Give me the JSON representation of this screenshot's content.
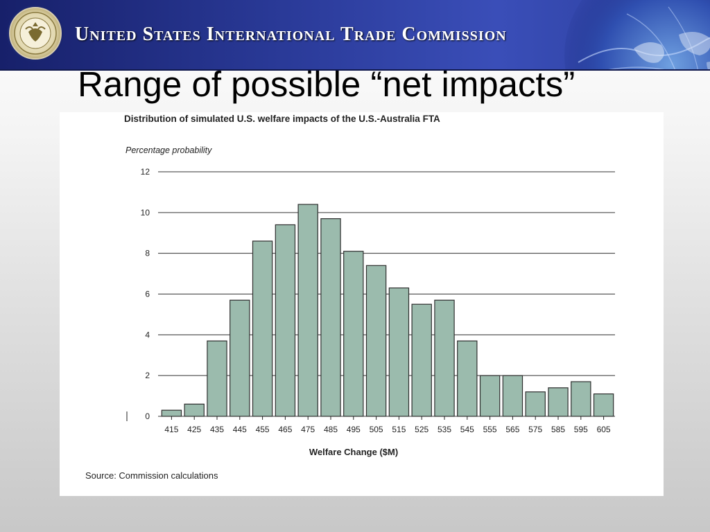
{
  "header": {
    "organization": "United States International Trade Commission",
    "seal_icon": "usitc-seal-icon",
    "globe_graphic": "globe-graphic"
  },
  "slide": {
    "title": "Range of possible “net impacts”"
  },
  "colors": {
    "header_bg": "#2a3a98",
    "bar_fill": "#9bbbad",
    "bar_stroke": "#2e2e2e",
    "grid": "#333333"
  },
  "chart_data": {
    "type": "bar",
    "title": "Distribution of simulated U.S. welfare impacts of the U.S.-Australia FTA",
    "ylabel": "Percentage probability",
    "xlabel": "Welfare Change ($M)",
    "source": "Source:  Commission calculations",
    "categories": [
      "415",
      "425",
      "435",
      "445",
      "455",
      "465",
      "475",
      "485",
      "495",
      "505",
      "515",
      "525",
      "535",
      "545",
      "555",
      "565",
      "575",
      "585",
      "595",
      "605"
    ],
    "values": [
      0.3,
      0.6,
      3.7,
      5.7,
      8.6,
      9.4,
      10.4,
      9.7,
      8.1,
      7.4,
      6.3,
      5.5,
      5.7,
      3.7,
      2.0,
      2.0,
      1.2,
      1.4,
      1.7,
      1.1
    ],
    "ylim": [
      0,
      12
    ],
    "yticks": [
      "0",
      "2",
      "4",
      "6",
      "8",
      "10",
      "12"
    ],
    "grid": true,
    "legend": "none"
  }
}
